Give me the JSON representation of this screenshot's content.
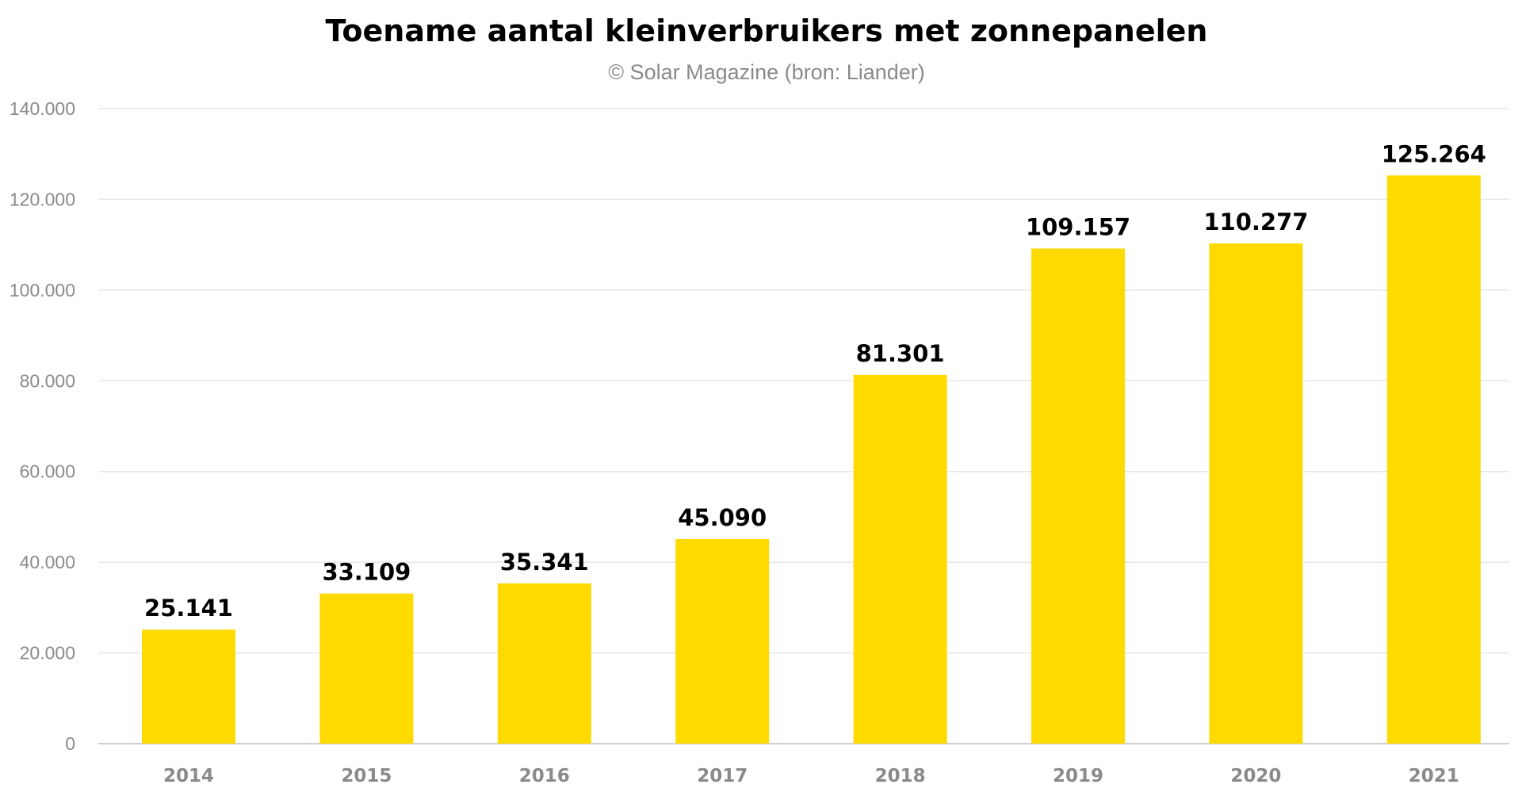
{
  "chart_data": {
    "type": "bar",
    "title": "Toename aantal kleinverbruikers met zonnepanelen",
    "subtitle": "© Solar Magazine (bron: Liander)",
    "xlabel": "",
    "ylabel": "",
    "categories": [
      "2014",
      "2015",
      "2016",
      "2017",
      "2018",
      "2019",
      "2020",
      "2021"
    ],
    "values": [
      25141,
      33109,
      35341,
      45090,
      81301,
      109157,
      110277,
      125264
    ],
    "data_labels": [
      "25.141",
      "33.109",
      "35.341",
      "45.090",
      "81.301",
      "109.157",
      "110.277",
      "125.264"
    ],
    "ylim": [
      0,
      140000
    ],
    "yticks": [
      0,
      20000,
      40000,
      60000,
      80000,
      100000,
      120000,
      140000
    ],
    "ytick_labels": [
      "0",
      "20.000",
      "40.000",
      "60.000",
      "80.000",
      "100.000",
      "120.000",
      "140.000"
    ],
    "grid": true,
    "legend": "none",
    "bar_color": "#FFDA00"
  }
}
